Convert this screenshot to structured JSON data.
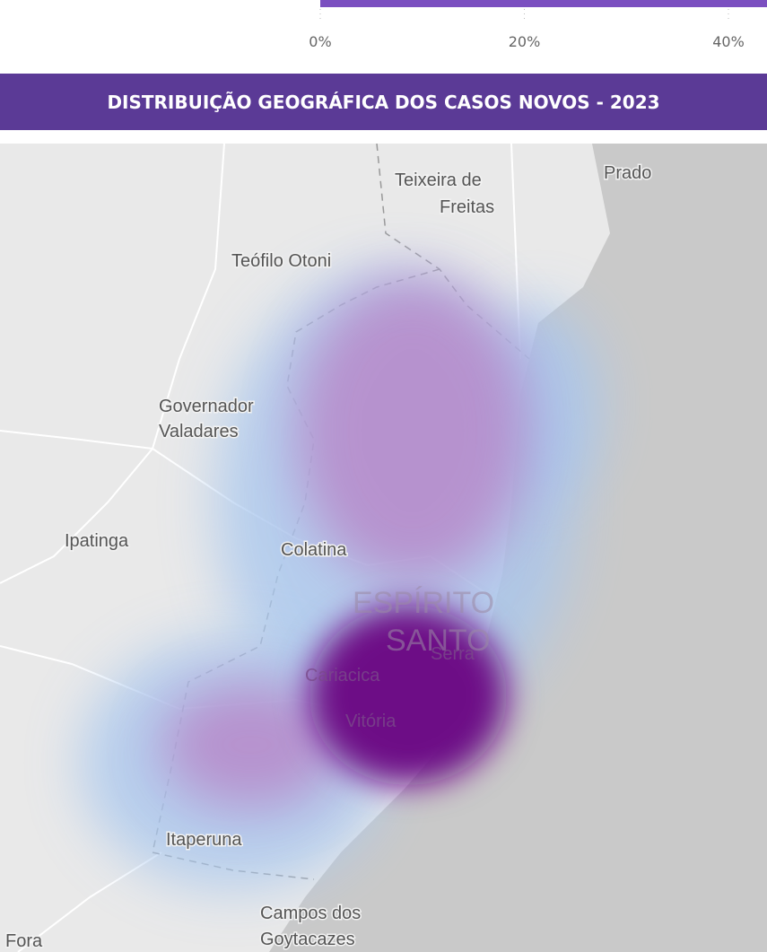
{
  "chart_data": {
    "type": "bar",
    "orientation": "horizontal",
    "values": [
      44
    ],
    "color": "#7b4fc0",
    "xlim": [
      0,
      44
    ],
    "xticks": [
      {
        "value": 0,
        "label": "0%"
      },
      {
        "value": 20,
        "label": "20%"
      },
      {
        "value": 40,
        "label": "40%"
      }
    ]
  },
  "header": {
    "title": "DISTRIBUIÇÃO GEOGRÁFICA DOS CASOS NOVOS - 2023"
  },
  "map": {
    "labels": [
      "Teixeira de",
      "Freitas",
      "Prado",
      "Teófilo Otoni",
      "Governador",
      "Valadares",
      "Ipatinga",
      "Colatina",
      "ESPÍRITO",
      "SANTO",
      "Serra",
      "Cariacica",
      "Vitória",
      "Itaperuna",
      "Campos dos",
      "Goytacazes",
      "Fora"
    ]
  }
}
